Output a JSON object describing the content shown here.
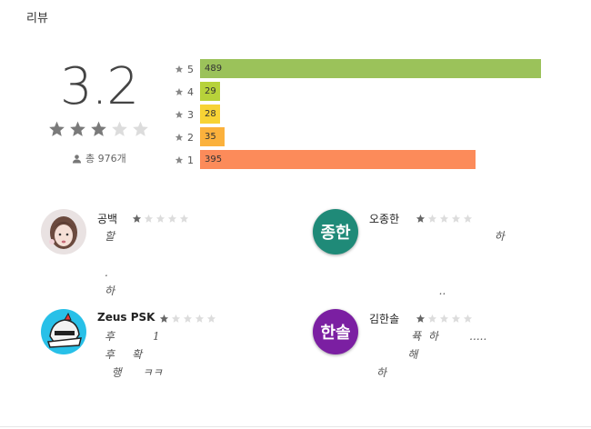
{
  "section": {
    "title": "리뷰"
  },
  "summary": {
    "score": "3.2",
    "stars_filled": 3,
    "stars_total": 5,
    "total_text": "총 976개"
  },
  "histogram": [
    {
      "star": "5",
      "count": 489,
      "label": "489",
      "color": "#9bc25a"
    },
    {
      "star": "4",
      "count": 29,
      "label": "29",
      "color": "#b7d23a"
    },
    {
      "star": "3",
      "count": 28,
      "label": "28",
      "color": "#f7d334"
    },
    {
      "star": "2",
      "count": 35,
      "label": "35",
      "color": "#fbb13c"
    },
    {
      "star": "1",
      "count": 395,
      "label": "395",
      "color": "#fc8b5a"
    }
  ],
  "reviews": [
    {
      "name": "공백",
      "rating": 1,
      "avatar_type": "photo",
      "avatar_icon": "girl-photo-icon",
      "body": "할\n\n.\n하"
    },
    {
      "name": "오종한",
      "rating": 1,
      "avatar_type": "text",
      "avatar_text": "종한",
      "avatar_color": "#1f8a78",
      "body": "                                  하\n\n\n                  .."
    },
    {
      "name": "Zeus PSK",
      "rating": 1,
      "avatar_type": "icon",
      "avatar_icon": "knight-helmet-icon",
      "body": "후           1\n후     확\n  행      ㅋㅋ"
    },
    {
      "name": "김한솔",
      "rating": 1,
      "avatar_type": "text",
      "avatar_text": "한솔",
      "avatar_color": "#7b1fa2",
      "body": "          퓩  하         .....\n         해\n하"
    }
  ]
}
